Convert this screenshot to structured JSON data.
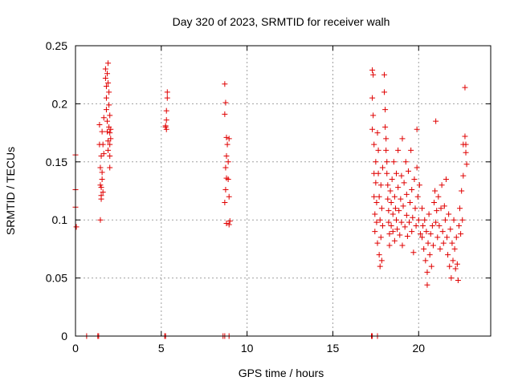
{
  "chart_data": {
    "type": "scatter",
    "title": "Day 320 of 2023, SRMTID for receiver walh",
    "xlabel": "GPS time / hours",
    "ylabel": "SRMTID / TECUs",
    "xlim": [
      0,
      24.2
    ],
    "ylim": [
      0,
      0.25
    ],
    "x_ticks": [
      0,
      5,
      10,
      15,
      20
    ],
    "x_tick_labels": [
      "0",
      "5",
      "10",
      "15",
      "20"
    ],
    "y_ticks": [
      0,
      0.05,
      0.1,
      0.15,
      0.2,
      0.25
    ],
    "y_tick_labels": [
      "0",
      "0.05",
      "0.1",
      "0.15",
      "0.2",
      "0.25"
    ],
    "grid": true,
    "marker": "+",
    "series": [
      {
        "name": "SRMTID",
        "color": "#e00000",
        "points": [
          [
            0.0,
            0.156
          ],
          [
            0.0,
            0.126
          ],
          [
            0.0,
            0.111
          ],
          [
            0.05,
            0.094
          ],
          [
            0.65,
            0.0
          ],
          [
            1.3,
            0.0
          ],
          [
            1.35,
            0.0
          ],
          [
            1.4,
            0.182
          ],
          [
            1.4,
            0.165
          ],
          [
            1.45,
            0.145
          ],
          [
            1.45,
            0.1
          ],
          [
            1.5,
            0.128
          ],
          [
            1.5,
            0.118
          ],
          [
            1.55,
            0.135
          ],
          [
            1.55,
            0.141
          ],
          [
            1.5,
            0.155
          ],
          [
            1.55,
            0.176
          ],
          [
            1.6,
            0.165
          ],
          [
            1.6,
            0.124
          ],
          [
            1.65,
            0.188
          ],
          [
            1.65,
            0.157
          ],
          [
            1.45,
            0.13
          ],
          [
            1.5,
            0.121
          ],
          [
            1.75,
            0.23
          ],
          [
            1.75,
            0.222
          ],
          [
            1.8,
            0.215
          ],
          [
            1.8,
            0.205
          ],
          [
            1.8,
            0.195
          ],
          [
            1.85,
            0.226
          ],
          [
            1.85,
            0.185
          ],
          [
            1.85,
            0.176
          ],
          [
            1.9,
            0.235
          ],
          [
            1.9,
            0.218
          ],
          [
            1.9,
            0.168
          ],
          [
            1.9,
            0.16
          ],
          [
            1.95,
            0.21
          ],
          [
            1.95,
            0.18
          ],
          [
            2.0,
            0.175
          ],
          [
            2.0,
            0.165
          ],
          [
            2.0,
            0.155
          ],
          [
            2.0,
            0.145
          ],
          [
            2.05,
            0.178
          ],
          [
            2.05,
            0.17
          ],
          [
            2.0,
            0.19
          ],
          [
            1.95,
            0.199
          ],
          [
            5.2,
            0.0
          ],
          [
            5.25,
            0.0
          ],
          [
            5.25,
            0.18
          ],
          [
            5.3,
            0.186
          ],
          [
            5.3,
            0.178
          ],
          [
            5.35,
            0.205
          ],
          [
            5.35,
            0.21
          ],
          [
            5.3,
            0.194
          ],
          [
            5.25,
            0.181
          ],
          [
            8.6,
            0.0
          ],
          [
            8.7,
            0.0
          ],
          [
            8.95,
            0.0
          ],
          [
            8.7,
            0.217
          ],
          [
            8.75,
            0.201
          ],
          [
            8.7,
            0.191
          ],
          [
            8.8,
            0.171
          ],
          [
            8.8,
            0.155
          ],
          [
            8.75,
            0.145
          ],
          [
            8.8,
            0.136
          ],
          [
            8.75,
            0.126
          ],
          [
            8.7,
            0.115
          ],
          [
            8.85,
            0.165
          ],
          [
            8.9,
            0.15
          ],
          [
            8.9,
            0.135
          ],
          [
            8.95,
            0.12
          ],
          [
            8.8,
            0.097
          ],
          [
            8.95,
            0.096
          ],
          [
            9.0,
            0.099
          ],
          [
            8.95,
            0.17
          ],
          [
            17.25,
            0.0
          ],
          [
            17.3,
            0.0
          ],
          [
            17.6,
            0.0
          ],
          [
            17.3,
            0.229
          ],
          [
            17.35,
            0.225
          ],
          [
            17.3,
            0.205
          ],
          [
            17.35,
            0.19
          ],
          [
            17.3,
            0.178
          ],
          [
            17.4,
            0.165
          ],
          [
            17.4,
            0.14
          ],
          [
            17.4,
            0.12
          ],
          [
            17.45,
            0.105
          ],
          [
            17.45,
            0.09
          ],
          [
            17.5,
            0.15
          ],
          [
            17.5,
            0.132
          ],
          [
            17.55,
            0.115
          ],
          [
            17.55,
            0.098
          ],
          [
            17.6,
            0.175
          ],
          [
            17.6,
            0.08
          ],
          [
            17.65,
            0.16
          ],
          [
            17.65,
            0.14
          ],
          [
            17.7,
            0.12
          ],
          [
            17.7,
            0.07
          ],
          [
            17.75,
            0.06
          ],
          [
            17.75,
            0.1
          ],
          [
            17.8,
            0.085
          ],
          [
            17.8,
            0.13
          ],
          [
            17.85,
            0.065
          ],
          [
            17.85,
            0.11
          ],
          [
            17.9,
            0.145
          ],
          [
            17.9,
            0.095
          ],
          [
            18.0,
            0.225
          ],
          [
            18.0,
            0.21
          ],
          [
            18.05,
            0.195
          ],
          [
            18.05,
            0.18
          ],
          [
            18.1,
            0.17
          ],
          [
            18.1,
            0.16
          ],
          [
            18.15,
            0.15
          ],
          [
            18.15,
            0.14
          ],
          [
            18.2,
            0.13
          ],
          [
            18.2,
            0.118
          ],
          [
            18.25,
            0.108
          ],
          [
            18.25,
            0.098
          ],
          [
            18.3,
            0.088
          ],
          [
            18.3,
            0.078
          ],
          [
            18.35,
            0.125
          ],
          [
            18.4,
            0.115
          ],
          [
            18.4,
            0.095
          ],
          [
            18.45,
            0.135
          ],
          [
            18.5,
            0.105
          ],
          [
            18.5,
            0.09
          ],
          [
            18.55,
            0.15
          ],
          [
            18.6,
            0.12
          ],
          [
            18.6,
            0.082
          ],
          [
            18.65,
            0.11
          ],
          [
            18.7,
            0.14
          ],
          [
            18.7,
            0.1
          ],
          [
            18.75,
            0.092
          ],
          [
            18.8,
            0.16
          ],
          [
            18.8,
            0.128
          ],
          [
            18.85,
            0.108
          ],
          [
            18.9,
            0.087
          ],
          [
            18.95,
            0.118
          ],
          [
            19.0,
            0.138
          ],
          [
            19.0,
            0.098
          ],
          [
            19.05,
            0.17
          ],
          [
            19.05,
            0.078
          ],
          [
            19.1,
            0.112
          ],
          [
            19.15,
            0.132
          ],
          [
            19.2,
            0.094
          ],
          [
            19.25,
            0.15
          ],
          [
            19.3,
            0.104
          ],
          [
            19.3,
            0.122
          ],
          [
            19.35,
            0.086
          ],
          [
            19.4,
            0.142
          ],
          [
            19.45,
            0.098
          ],
          [
            19.5,
            0.115
          ],
          [
            19.55,
            0.16
          ],
          [
            19.6,
            0.09
          ],
          [
            19.6,
            0.126
          ],
          [
            19.65,
            0.102
          ],
          [
            19.7,
            0.072
          ],
          [
            19.75,
            0.135
          ],
          [
            19.8,
            0.11
          ],
          [
            19.85,
            0.095
          ],
          [
            19.9,
            0.178
          ],
          [
            19.9,
            0.145
          ],
          [
            19.95,
            0.12
          ],
          [
            20.0,
            0.1
          ],
          [
            20.05,
            0.13
          ],
          [
            20.1,
            0.088
          ],
          [
            20.2,
            0.085
          ],
          [
            20.2,
            0.11
          ],
          [
            20.25,
            0.095
          ],
          [
            20.3,
            0.075
          ],
          [
            20.35,
            0.1
          ],
          [
            20.4,
            0.065
          ],
          [
            20.45,
            0.09
          ],
          [
            20.5,
            0.055
          ],
          [
            20.5,
            0.044
          ],
          [
            20.55,
            0.08
          ],
          [
            20.6,
            0.105
          ],
          [
            20.65,
            0.07
          ],
          [
            20.7,
            0.088
          ],
          [
            20.75,
            0.06
          ],
          [
            20.8,
            0.095
          ],
          [
            20.85,
            0.078
          ],
          [
            20.9,
            0.115
          ],
          [
            20.95,
            0.125
          ],
          [
            21.0,
            0.098
          ],
          [
            21.0,
            0.185
          ],
          [
            21.05,
            0.108
          ],
          [
            21.1,
            0.085
          ],
          [
            21.15,
            0.12
          ],
          [
            21.2,
            0.095
          ],
          [
            21.25,
            0.075
          ],
          [
            21.3,
            0.11
          ],
          [
            21.35,
            0.13
          ],
          [
            21.4,
            0.09
          ],
          [
            21.45,
            0.08
          ],
          [
            21.5,
            0.112
          ],
          [
            21.55,
            0.1
          ],
          [
            21.6,
            0.135
          ],
          [
            21.65,
            0.085
          ],
          [
            21.7,
            0.07
          ],
          [
            21.75,
            0.105
          ],
          [
            21.8,
            0.06
          ],
          [
            21.85,
            0.092
          ],
          [
            21.9,
            0.05
          ],
          [
            21.95,
            0.08
          ],
          [
            22.0,
            0.065
          ],
          [
            22.05,
            0.1
          ],
          [
            22.1,
            0.075
          ],
          [
            22.15,
            0.058
          ],
          [
            22.2,
            0.085
          ],
          [
            22.25,
            0.062
          ],
          [
            22.3,
            0.048
          ],
          [
            22.35,
            0.095
          ],
          [
            22.4,
            0.11
          ],
          [
            22.45,
            0.088
          ],
          [
            22.5,
            0.125
          ],
          [
            22.55,
            0.1
          ],
          [
            22.6,
            0.165
          ],
          [
            22.6,
            0.138
          ],
          [
            22.7,
            0.214
          ],
          [
            22.7,
            0.172
          ],
          [
            22.75,
            0.165
          ],
          [
            22.75,
            0.158
          ],
          [
            22.8,
            0.148
          ]
        ]
      }
    ]
  }
}
